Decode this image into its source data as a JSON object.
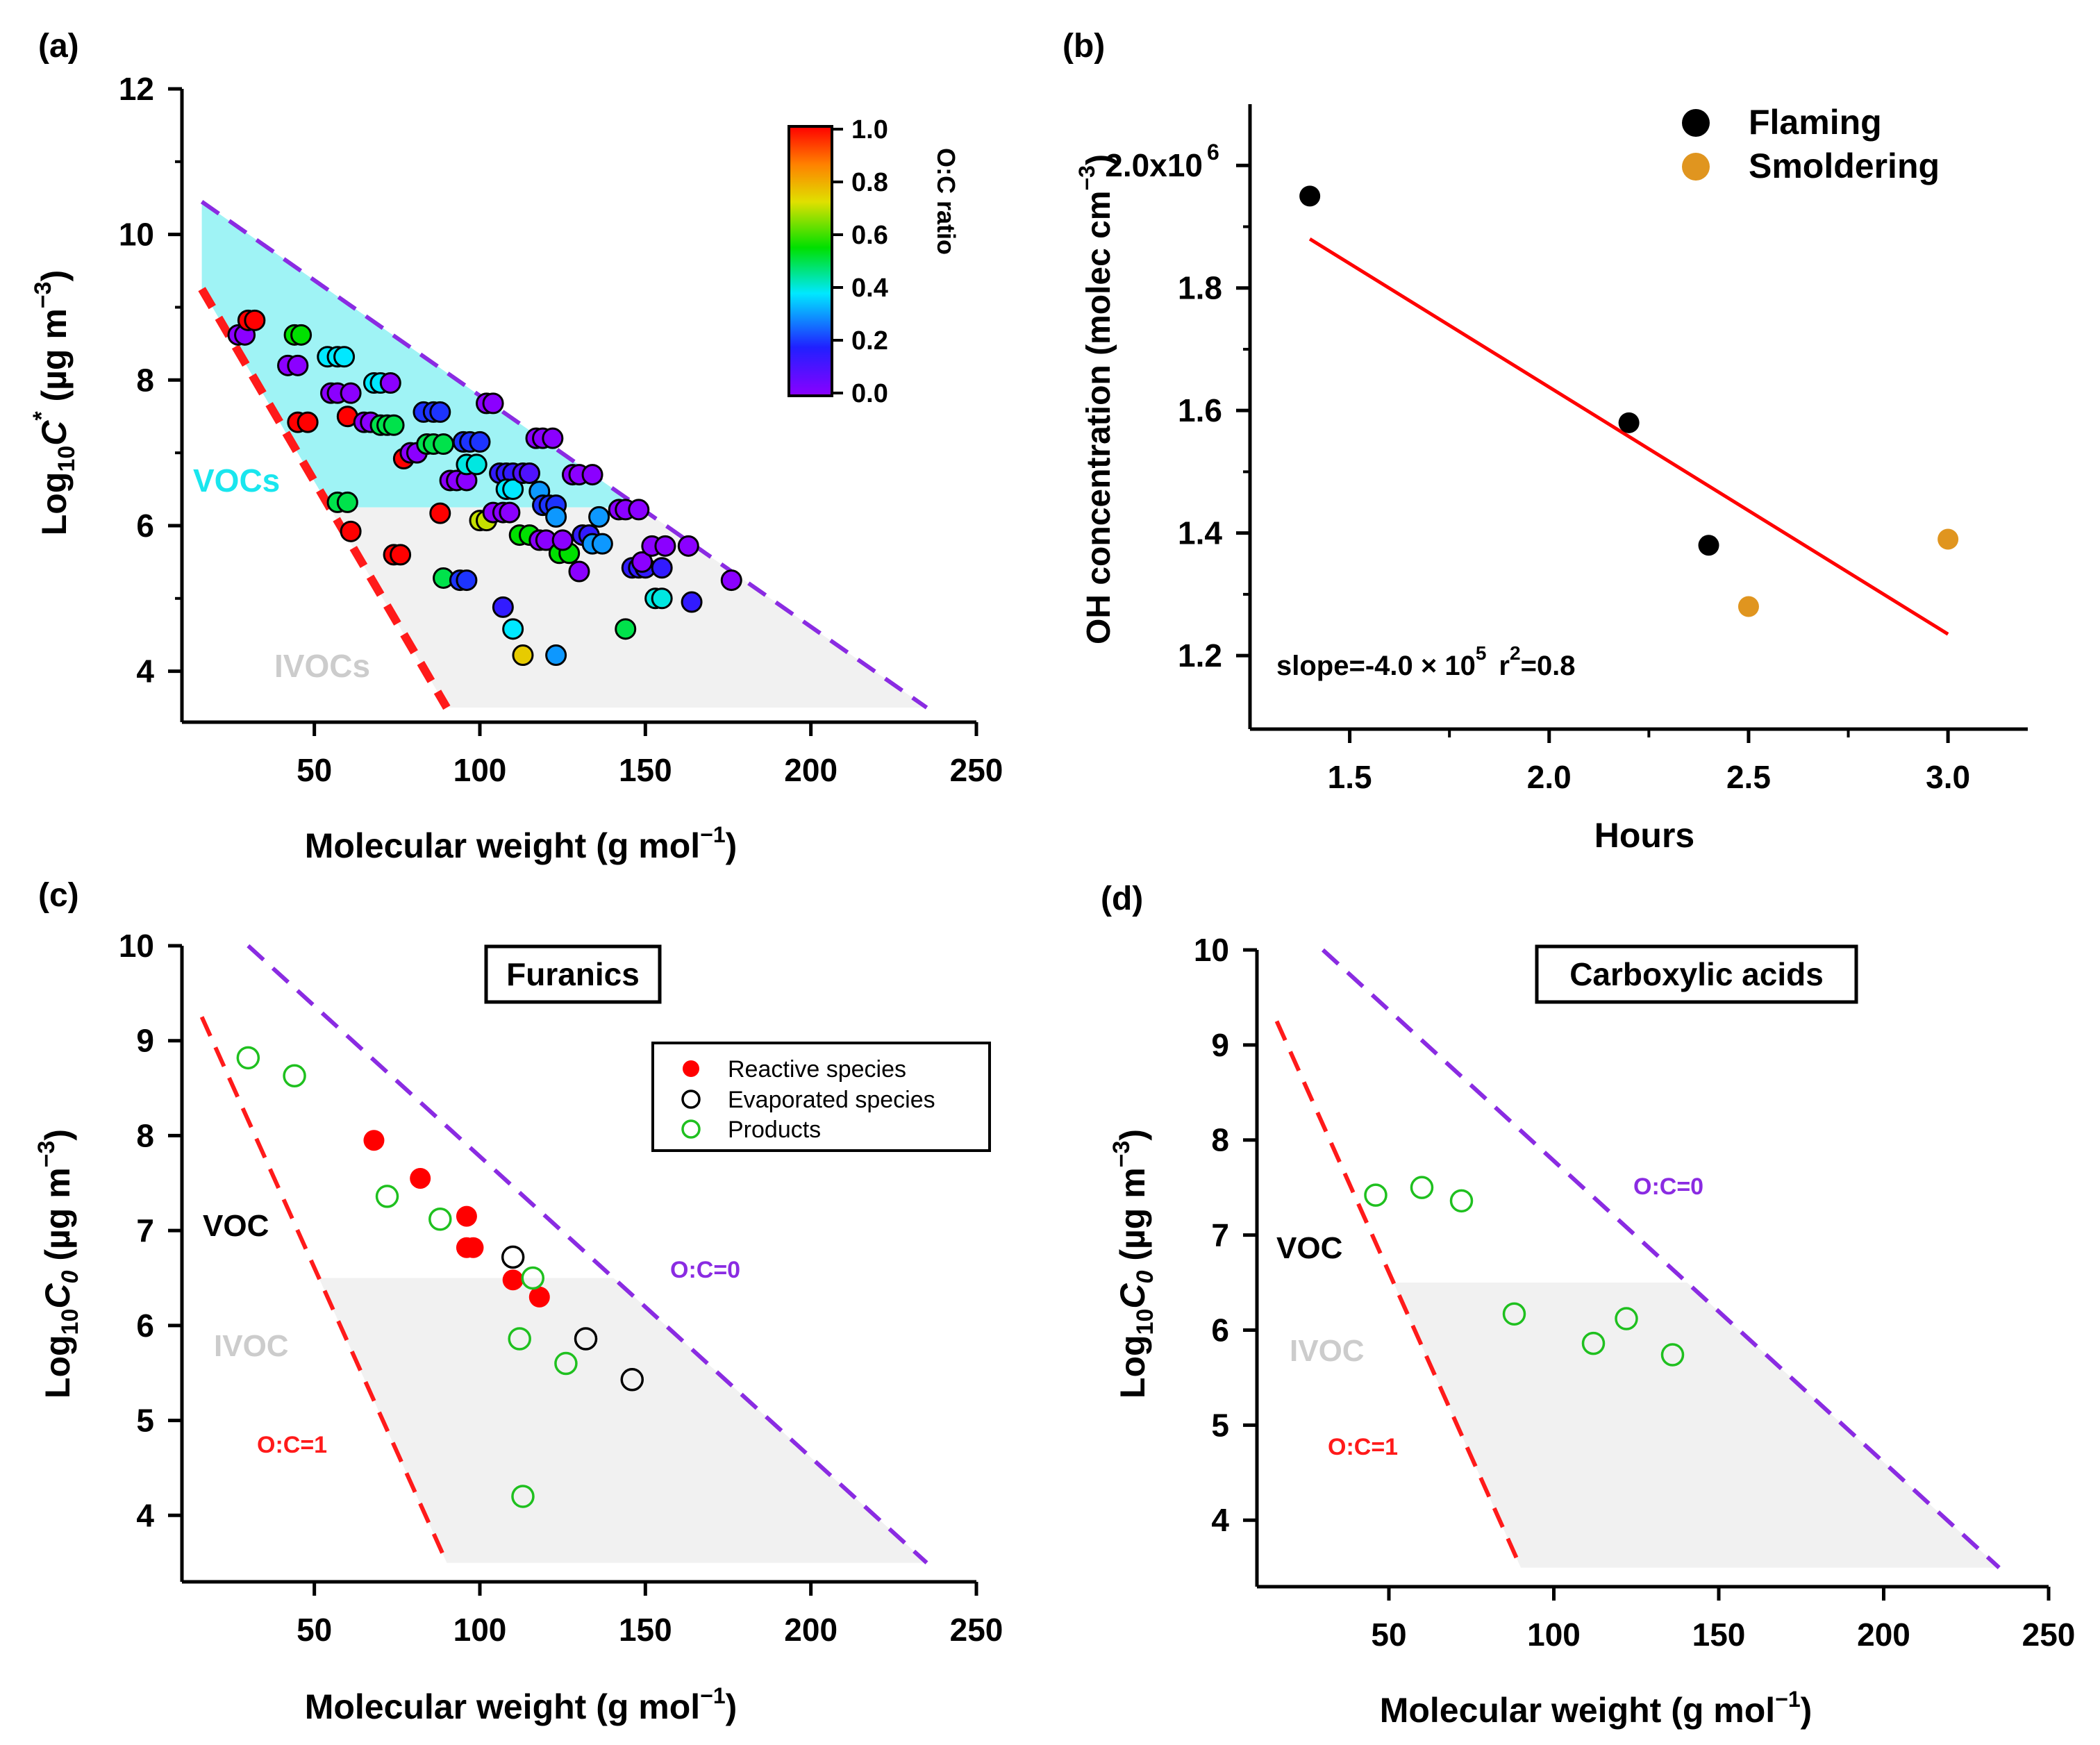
{
  "colors": {
    "flaming": "#000000",
    "smoldering": "#e0951f",
    "fit": "#ff0000",
    "purple_line": "#8a2be2",
    "red_line": "#ff1a1a",
    "voc_fill": "#9ff3f5",
    "ivoc_fill": "#f1f1f1",
    "products": "#1fc01f"
  },
  "chart_data": [
    {
      "panel": "(a)",
      "type": "scatter",
      "xlabel": "Molecular weight (g mol⁻¹)",
      "ylabel": "Log₁₀C* (μg m⁻³)",
      "xlim": [
        10,
        250
      ],
      "ylim": [
        3.3,
        12
      ],
      "xticks": [
        "50",
        "100",
        "150",
        "200",
        "250"
      ],
      "yticks": [
        "4",
        "6",
        "8",
        "10",
        "12"
      ],
      "region_labels": {
        "voc": "VOCs",
        "ivoc": "IVOCs"
      },
      "colorbar": {
        "title": "O:C ratio",
        "ticks": [
          "1.0",
          "0.8",
          "0.6",
          "0.4",
          "0.2",
          "0.0"
        ],
        "range": [
          0,
          1
        ]
      },
      "boundaries": {
        "oc0": [
          [
            16,
            10.45
          ],
          [
            235,
            3.5
          ]
        ],
        "oc1": [
          [
            16,
            9.25
          ],
          [
            90,
            3.5
          ]
        ],
        "voc_ivoc_split": 6.25
      },
      "points": [
        {
          "x": 27,
          "y": 8.62,
          "oc": 0.0
        },
        {
          "x": 29,
          "y": 8.62,
          "oc": 0.0
        },
        {
          "x": 30,
          "y": 8.82,
          "oc": 1.0
        },
        {
          "x": 32,
          "y": 8.82,
          "oc": 1.0
        },
        {
          "x": 42,
          "y": 8.2,
          "oc": 0.0
        },
        {
          "x": 44,
          "y": 8.62,
          "oc": 0.55
        },
        {
          "x": 46,
          "y": 8.62,
          "oc": 0.55
        },
        {
          "x": 45,
          "y": 8.2,
          "oc": 0.0
        },
        {
          "x": 45,
          "y": 7.42,
          "oc": 1.0
        },
        {
          "x": 48,
          "y": 7.42,
          "oc": 1.0
        },
        {
          "x": 54,
          "y": 8.32,
          "oc": 0.38
        },
        {
          "x": 57,
          "y": 8.32,
          "oc": 0.38
        },
        {
          "x": 59,
          "y": 8.32,
          "oc": 0.38
        },
        {
          "x": 55,
          "y": 7.82,
          "oc": 0.0
        },
        {
          "x": 57,
          "y": 7.82,
          "oc": 0.0
        },
        {
          "x": 61,
          "y": 7.82,
          "oc": 0.0
        },
        {
          "x": 57,
          "y": 6.32,
          "oc": 0.5
        },
        {
          "x": 60,
          "y": 6.32,
          "oc": 0.5
        },
        {
          "x": 60,
          "y": 7.5,
          "oc": 1.0
        },
        {
          "x": 61,
          "y": 5.92,
          "oc": 1.0
        },
        {
          "x": 65,
          "y": 7.42,
          "oc": 0.0
        },
        {
          "x": 67,
          "y": 7.42,
          "oc": 0.0
        },
        {
          "x": 68,
          "y": 7.96,
          "oc": 0.38
        },
        {
          "x": 70,
          "y": 7.96,
          "oc": 0.38
        },
        {
          "x": 73,
          "y": 7.96,
          "oc": 0.0
        },
        {
          "x": 70,
          "y": 7.38,
          "oc": 0.5
        },
        {
          "x": 72,
          "y": 7.38,
          "oc": 0.5
        },
        {
          "x": 74,
          "y": 7.38,
          "oc": 0.5
        },
        {
          "x": 74,
          "y": 5.6,
          "oc": 1.0
        },
        {
          "x": 76,
          "y": 5.6,
          "oc": 1.0
        },
        {
          "x": 77,
          "y": 6.92,
          "oc": 1.0
        },
        {
          "x": 79,
          "y": 7.0,
          "oc": 0.0
        },
        {
          "x": 81,
          "y": 7.0,
          "oc": 0.0
        },
        {
          "x": 83,
          "y": 7.56,
          "oc": 0.2
        },
        {
          "x": 86,
          "y": 7.56,
          "oc": 0.2
        },
        {
          "x": 88,
          "y": 7.56,
          "oc": 0.2
        },
        {
          "x": 84,
          "y": 7.12,
          "oc": 0.5
        },
        {
          "x": 86,
          "y": 7.12,
          "oc": 0.5
        },
        {
          "x": 89,
          "y": 7.12,
          "oc": 0.5
        },
        {
          "x": 88,
          "y": 6.17,
          "oc": 1.0
        },
        {
          "x": 89,
          "y": 5.28,
          "oc": 0.5
        },
        {
          "x": 94,
          "y": 5.25,
          "oc": 0.2
        },
        {
          "x": 96,
          "y": 5.25,
          "oc": 0.2
        },
        {
          "x": 91,
          "y": 6.62,
          "oc": 0.0
        },
        {
          "x": 93,
          "y": 6.62,
          "oc": 0.0
        },
        {
          "x": 96,
          "y": 6.62,
          "oc": 0.0
        },
        {
          "x": 95,
          "y": 7.15,
          "oc": 0.2
        },
        {
          "x": 97,
          "y": 7.15,
          "oc": 0.2
        },
        {
          "x": 100,
          "y": 7.15,
          "oc": 0.2
        },
        {
          "x": 96,
          "y": 6.84,
          "oc": 0.4
        },
        {
          "x": 99,
          "y": 6.84,
          "oc": 0.4
        },
        {
          "x": 100,
          "y": 6.07,
          "oc": 0.7
        },
        {
          "x": 102,
          "y": 6.07,
          "oc": 0.7
        },
        {
          "x": 102,
          "y": 7.68,
          "oc": 0.0
        },
        {
          "x": 104,
          "y": 7.68,
          "oc": 0.0
        },
        {
          "x": 104,
          "y": 6.18,
          "oc": 0.0
        },
        {
          "x": 107,
          "y": 6.18,
          "oc": 0.0
        },
        {
          "x": 109,
          "y": 6.18,
          "oc": 0.0
        },
        {
          "x": 106,
          "y": 6.72,
          "oc": 0.15
        },
        {
          "x": 108,
          "y": 6.72,
          "oc": 0.15
        },
        {
          "x": 110,
          "y": 6.72,
          "oc": 0.15
        },
        {
          "x": 108,
          "y": 6.5,
          "oc": 0.38
        },
        {
          "x": 110,
          "y": 6.5,
          "oc": 0.38
        },
        {
          "x": 107,
          "y": 4.88,
          "oc": 0.15
        },
        {
          "x": 110,
          "y": 4.58,
          "oc": 0.38
        },
        {
          "x": 113,
          "y": 4.22,
          "oc": 0.75
        },
        {
          "x": 112,
          "y": 5.87,
          "oc": 0.55
        },
        {
          "x": 115,
          "y": 5.87,
          "oc": 0.55
        },
        {
          "x": 113,
          "y": 6.72,
          "oc": 0.1
        },
        {
          "x": 115,
          "y": 6.72,
          "oc": 0.1
        },
        {
          "x": 117,
          "y": 7.2,
          "oc": 0.0
        },
        {
          "x": 119,
          "y": 7.2,
          "oc": 0.0
        },
        {
          "x": 122,
          "y": 7.2,
          "oc": 0.0
        },
        {
          "x": 118,
          "y": 5.8,
          "oc": 0.0
        },
        {
          "x": 120,
          "y": 5.8,
          "oc": 0.0
        },
        {
          "x": 118,
          "y": 6.47,
          "oc": 0.3
        },
        {
          "x": 119,
          "y": 6.28,
          "oc": 0.2
        },
        {
          "x": 121,
          "y": 6.28,
          "oc": 0.2
        },
        {
          "x": 123,
          "y": 6.28,
          "oc": 0.2
        },
        {
          "x": 123,
          "y": 6.12,
          "oc": 0.3
        },
        {
          "x": 123,
          "y": 4.22,
          "oc": 0.3
        },
        {
          "x": 124,
          "y": 5.62,
          "oc": 0.55
        },
        {
          "x": 127,
          "y": 5.62,
          "oc": 0.55
        },
        {
          "x": 125,
          "y": 5.8,
          "oc": 0.0
        },
        {
          "x": 128,
          "y": 6.7,
          "oc": 0.0
        },
        {
          "x": 130,
          "y": 6.7,
          "oc": 0.0
        },
        {
          "x": 134,
          "y": 6.7,
          "oc": 0.0
        },
        {
          "x": 130,
          "y": 5.37,
          "oc": 0.0
        },
        {
          "x": 131,
          "y": 5.87,
          "oc": 0.15
        },
        {
          "x": 133,
          "y": 5.87,
          "oc": 0.15
        },
        {
          "x": 134,
          "y": 5.75,
          "oc": 0.3
        },
        {
          "x": 137,
          "y": 5.75,
          "oc": 0.3
        },
        {
          "x": 136,
          "y": 6.12,
          "oc": 0.3
        },
        {
          "x": 142,
          "y": 6.22,
          "oc": 0.0
        },
        {
          "x": 144,
          "y": 6.22,
          "oc": 0.0
        },
        {
          "x": 148,
          "y": 6.22,
          "oc": 0.0
        },
        {
          "x": 144,
          "y": 4.58,
          "oc": 0.5
        },
        {
          "x": 146,
          "y": 5.42,
          "oc": 0.15
        },
        {
          "x": 148,
          "y": 5.42,
          "oc": 0.15
        },
        {
          "x": 150,
          "y": 5.42,
          "oc": 0.15
        },
        {
          "x": 149,
          "y": 5.5,
          "oc": 0.0
        },
        {
          "x": 152,
          "y": 5.72,
          "oc": 0.0
        },
        {
          "x": 156,
          "y": 5.72,
          "oc": 0.0
        },
        {
          "x": 153,
          "y": 5.0,
          "oc": 0.4
        },
        {
          "x": 155,
          "y": 5.0,
          "oc": 0.4
        },
        {
          "x": 155,
          "y": 5.42,
          "oc": 0.15
        },
        {
          "x": 163,
          "y": 5.72,
          "oc": 0.0
        },
        {
          "x": 164,
          "y": 4.95,
          "oc": 0.15
        },
        {
          "x": 176,
          "y": 5.25,
          "oc": 0.0
        }
      ]
    },
    {
      "panel": "(b)",
      "type": "scatter",
      "xlabel": "Hours",
      "ylabel": "OH concentration (molec cm⁻³)",
      "xlim": [
        1.25,
        3.2
      ],
      "ylim": [
        1.08,
        2.1
      ],
      "xticks": [
        "1.5",
        "2.0",
        "2.5",
        "3.0"
      ],
      "yticks": [
        "1.2",
        "1.4",
        "1.6",
        "1.8",
        "2.0x10"
      ],
      "ytick_top_exponent": "6",
      "legend": [
        "Flaming",
        "Smoldering"
      ],
      "series": [
        {
          "name": "Flaming",
          "x": [
            1.4,
            2.2,
            2.4
          ],
          "y": [
            1.95,
            1.58,
            1.38
          ]
        },
        {
          "name": "Smoldering",
          "x": [
            2.5,
            3.0
          ],
          "y": [
            1.28,
            1.39
          ]
        }
      ],
      "fit": {
        "x": [
          1.4,
          3.0
        ],
        "y": [
          1.88,
          1.235
        ]
      },
      "annotation": {
        "text": "slope=-4.0 × 10",
        "exp": "5",
        "r2_text": "r",
        "r2_exp": "2",
        "r2_val": "=0.8"
      }
    },
    {
      "panel": "(c)",
      "type": "scatter",
      "title": "Furanics",
      "xlabel": "Molecular weight (g mol⁻¹)",
      "ylabel": "Log₁₀C₀ (μg m⁻³)",
      "xlim": [
        10,
        250
      ],
      "ylim": [
        3.3,
        10
      ],
      "xticks": [
        "50",
        "100",
        "150",
        "200",
        "250"
      ],
      "yticks": [
        "4",
        "5",
        "6",
        "7",
        "8",
        "9",
        "10"
      ],
      "labels": {
        "voc": "VOC",
        "ivoc": "IVOC",
        "oc1": "O:C=1",
        "oc0": "O:C=0"
      },
      "legend": [
        "Reactive species",
        "Evaporated species",
        "Products"
      ],
      "boundaries": {
        "oc0": [
          [
            30,
            10.0
          ],
          [
            235,
            3.5
          ]
        ],
        "oc1": [
          [
            16,
            9.25
          ],
          [
            90,
            3.5
          ]
        ],
        "voc_ivoc_split": 6.5
      },
      "series": [
        {
          "name": "Reactive species",
          "x": [
            68,
            82,
            96,
            96,
            98,
            110,
            118
          ],
          "y": [
            7.95,
            7.55,
            7.15,
            6.82,
            6.82,
            6.48,
            6.3
          ]
        },
        {
          "name": "Evaporated species",
          "x": [
            110,
            132,
            146
          ],
          "y": [
            6.72,
            5.86,
            5.43
          ]
        },
        {
          "name": "Products",
          "x": [
            30,
            44,
            72,
            88,
            116,
            112,
            126,
            113
          ],
          "y": [
            8.82,
            8.63,
            7.36,
            7.12,
            6.5,
            5.86,
            5.6,
            4.2
          ]
        }
      ]
    },
    {
      "panel": "(d)",
      "type": "scatter",
      "title": "Carboxylic acids",
      "xlabel": "Molecular weight (g mol⁻¹)",
      "ylabel": "Log₁₀C₀ (μg m⁻³)",
      "xlim": [
        10,
        250
      ],
      "ylim": [
        3.3,
        10
      ],
      "xticks": [
        "50",
        "100",
        "150",
        "200",
        "250"
      ],
      "yticks": [
        "4",
        "5",
        "6",
        "7",
        "8",
        "9",
        "10"
      ],
      "labels": {
        "voc": "VOC",
        "ivoc": "IVOC",
        "oc1": "O:C=1",
        "oc0": "O:C=0"
      },
      "boundaries": {
        "oc0": [
          [
            30,
            10.0
          ],
          [
            235,
            3.5
          ]
        ],
        "oc1": [
          [
            16,
            9.25
          ],
          [
            90,
            3.5
          ]
        ],
        "voc_ivoc_split": 6.5
      },
      "series": [
        {
          "name": "Products",
          "x": [
            46,
            60,
            72,
            88,
            112,
            122,
            136
          ],
          "y": [
            7.42,
            7.5,
            7.36,
            6.17,
            5.86,
            6.12,
            5.74
          ]
        }
      ]
    }
  ]
}
